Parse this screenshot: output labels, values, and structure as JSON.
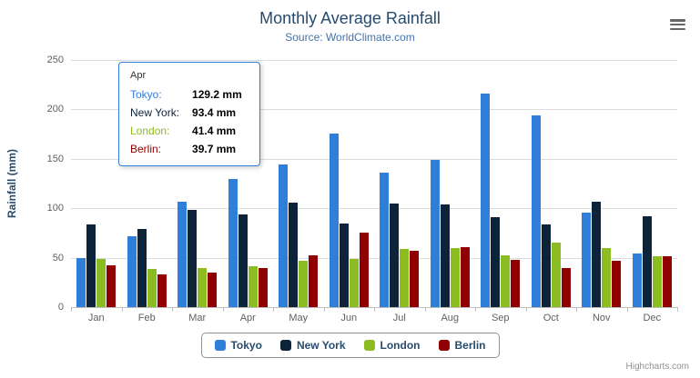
{
  "header": {
    "title": "Monthly Average Rainfall",
    "subtitle": "Source: WorldClimate.com"
  },
  "menu": {
    "icon": "hamburger-menu"
  },
  "chart_data": {
    "type": "bar",
    "title": "Monthly Average Rainfall",
    "subtitle": "Source: WorldClimate.com",
    "xlabel": "",
    "ylabel": "Rainfall (mm)",
    "ylim": [
      0,
      250
    ],
    "yticks": [
      0,
      50,
      100,
      150,
      200,
      250
    ],
    "grid": true,
    "legend_position": "bottom",
    "categories": [
      "Jan",
      "Feb",
      "Mar",
      "Apr",
      "May",
      "Jun",
      "Jul",
      "Aug",
      "Sep",
      "Oct",
      "Nov",
      "Dec"
    ],
    "series": [
      {
        "name": "Tokyo",
        "color": "#2f7ed8",
        "values": [
          49.9,
          71.5,
          106.4,
          129.2,
          144.0,
          176.0,
          135.6,
          148.5,
          216.4,
          194.1,
          95.6,
          54.4
        ]
      },
      {
        "name": "New York",
        "color": "#0d233a",
        "values": [
          83.6,
          78.8,
          98.5,
          93.4,
          106.0,
          84.5,
          105.0,
          104.3,
          91.2,
          83.5,
          106.6,
          92.3
        ]
      },
      {
        "name": "London",
        "color": "#8bbc21",
        "values": [
          48.9,
          38.8,
          39.3,
          41.4,
          47.0,
          48.3,
          59.0,
          59.6,
          52.4,
          65.2,
          59.3,
          51.2
        ]
      },
      {
        "name": "Berlin",
        "color": "#910000",
        "values": [
          42.4,
          33.2,
          34.5,
          39.7,
          52.6,
          75.5,
          57.4,
          60.4,
          47.6,
          39.1,
          46.8,
          51.1
        ]
      }
    ]
  },
  "tooltip": {
    "header": "Apr",
    "rows": [
      {
        "label": "Tokyo:",
        "value": "129.2 mm",
        "color": "#2f7ed8"
      },
      {
        "label": "New York:",
        "value": "93.4 mm",
        "color": "#0d233a"
      },
      {
        "label": "London:",
        "value": "41.4 mm",
        "color": "#8bbc21"
      },
      {
        "label": "Berlin:",
        "value": "39.7 mm",
        "color": "#910000"
      }
    ],
    "border_color": "#2f7ed8"
  },
  "credits": "Highcharts.com"
}
